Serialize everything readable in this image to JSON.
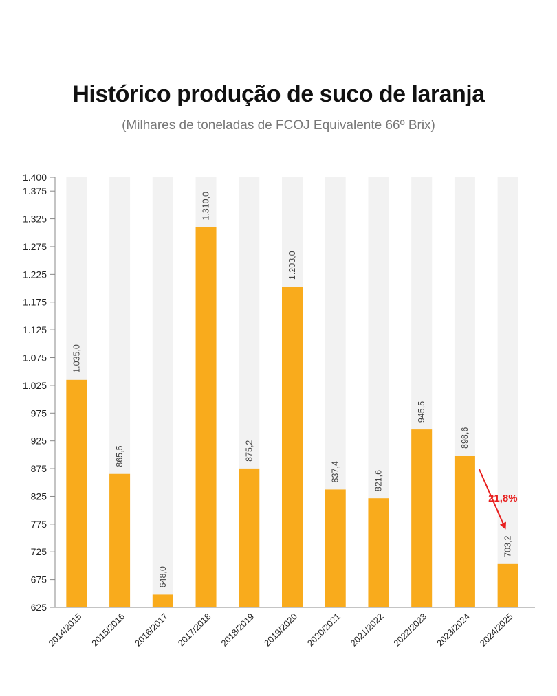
{
  "chart_data": {
    "type": "bar",
    "title": "Histórico produção de suco de laranja",
    "subtitle": "(Milhares de toneladas de FCOJ Equivalente 66º Brix)",
    "categories": [
      "2014/2015",
      "2015/2016",
      "2016/2017",
      "2017/2018",
      "2018/2019",
      "2019/2020",
      "2020/2021",
      "2021/2022",
      "2022/2023",
      "2023/2024",
      "2024/2025"
    ],
    "values": [
      1035.0,
      865.5,
      648.0,
      1310.0,
      875.2,
      1203.0,
      837.4,
      821.6,
      945.5,
      898.6,
      703.2
    ],
    "data_labels": [
      "1.035,0",
      "865,5",
      "648,0",
      "1.310,0",
      "875,2",
      "1.203,0",
      "837,4",
      "821,6",
      "945,5",
      "898,6",
      "703,2"
    ],
    "ylim": [
      625,
      1400
    ],
    "yticks": [
      625,
      675,
      725,
      775,
      825,
      875,
      925,
      975,
      1025,
      1075,
      1125,
      1175,
      1225,
      1275,
      1325,
      1375,
      1400
    ],
    "ytick_labels": [
      "625",
      "675",
      "725",
      "775",
      "825",
      "875",
      "925",
      "975",
      "1.025",
      "1.075",
      "1.125",
      "1.175",
      "1.225",
      "1.275",
      "1.325",
      "1.375",
      "1.400"
    ],
    "annotation": {
      "text": "21,8%",
      "from_category": "2023/2024",
      "to_category": "2024/2025"
    },
    "grid": false,
    "colors": {
      "bar": "#f9ab1c",
      "background_bar": "#f2f2f2",
      "annotation": "#e8201f",
      "axis": "#888888"
    }
  }
}
